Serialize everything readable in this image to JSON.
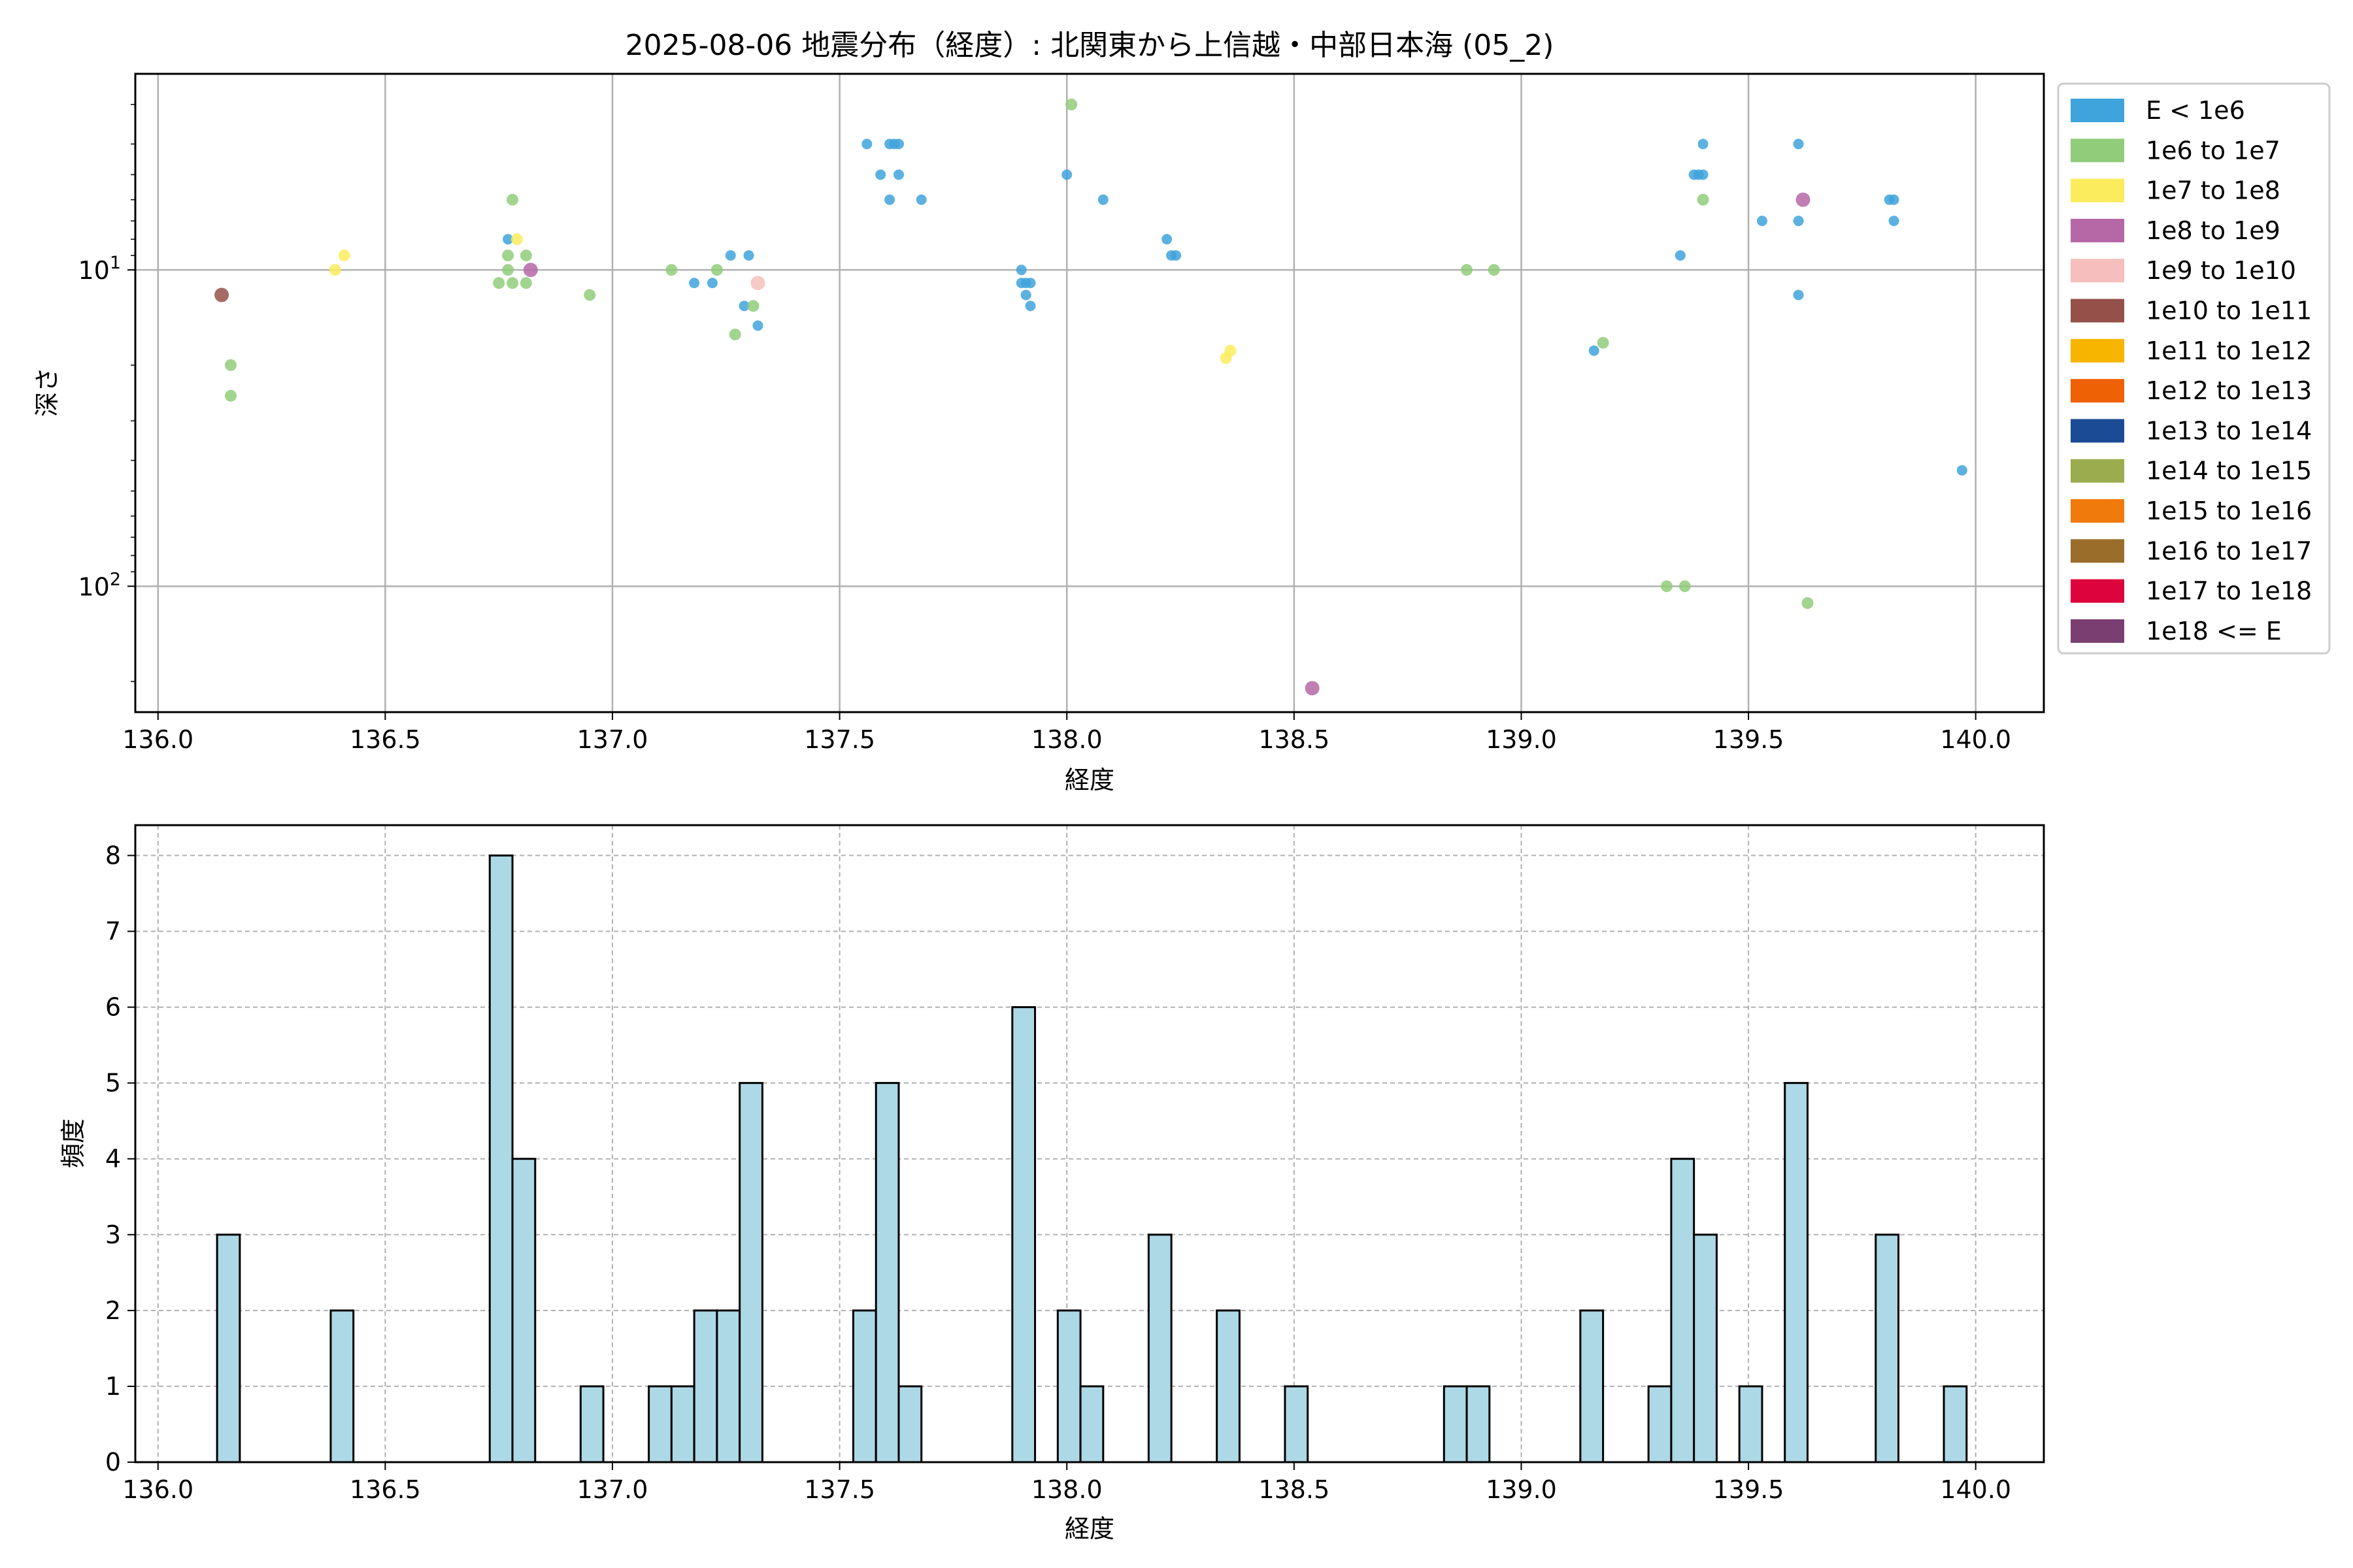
{
  "chart_data": [
    {
      "type": "scatter",
      "title": "2025-08-06 地震分布（経度）: 北関東から上信越・中部日本海 (05_2)",
      "xlabel": "経度",
      "ylabel": "深さ",
      "xlim": [
        135.95,
        140.15
      ],
      "ylim": [
        250,
        2.4
      ],
      "y_scale": "log",
      "y_inverted": true,
      "grid": true,
      "legend_position": "outside-right",
      "xticks": [
        "136.0",
        "136.5",
        "137.0",
        "137.5",
        "138.0",
        "138.5",
        "139.0",
        "139.5",
        "140.0"
      ],
      "yticks": [
        {
          "value": 10,
          "base": "10",
          "exp": "1"
        },
        {
          "value": 100,
          "base": "10",
          "exp": "2"
        }
      ],
      "legend": [
        {
          "label": "E < 1e6",
          "color": "#3fa3dc"
        },
        {
          "label": "1e6 to 1e7",
          "color": "#90cc7a"
        },
        {
          "label": "1e7 to 1e8",
          "color": "#fbec5d"
        },
        {
          "label": "1e8 to 1e9",
          "color": "#b567a6"
        },
        {
          "label": "1e9 to 1e10",
          "color": "#f6bfbd"
        },
        {
          "label": "1e10 to 1e11",
          "color": "#955149"
        },
        {
          "label": "1e11 to 1e12",
          "color": "#f7b500"
        },
        {
          "label": "1e12 to 1e13",
          "color": "#ee6104"
        },
        {
          "label": "1e13 to 1e14",
          "color": "#1b4b94"
        },
        {
          "label": "1e14 to 1e15",
          "color": "#9bac4e"
        },
        {
          "label": "1e15 to 1e16",
          "color": "#f17a0c"
        },
        {
          "label": "1e16 to 1e17",
          "color": "#9a6d2b"
        },
        {
          "label": "1e17 to 1e18",
          "color": "#dd043d"
        },
        {
          "label": "1e18 <= E",
          "color": "#7a3e71"
        }
      ],
      "points": [
        {
          "x": 136.14,
          "y": 12,
          "c": 5
        },
        {
          "x": 136.16,
          "y": 20,
          "c": 1
        },
        {
          "x": 136.16,
          "y": 25,
          "c": 1
        },
        {
          "x": 136.39,
          "y": 10,
          "c": 2
        },
        {
          "x": 136.41,
          "y": 9,
          "c": 2
        },
        {
          "x": 136.75,
          "y": 11,
          "c": 1
        },
        {
          "x": 136.77,
          "y": 8,
          "c": 0
        },
        {
          "x": 136.77,
          "y": 9,
          "c": 1
        },
        {
          "x": 136.77,
          "y": 10,
          "c": 1
        },
        {
          "x": 136.78,
          "y": 11,
          "c": 1
        },
        {
          "x": 136.78,
          "y": 6,
          "c": 1
        },
        {
          "x": 136.79,
          "y": 8,
          "c": 2
        },
        {
          "x": 136.81,
          "y": 9,
          "c": 1
        },
        {
          "x": 136.81,
          "y": 11,
          "c": 1
        },
        {
          "x": 136.82,
          "y": 10,
          "c": 3
        },
        {
          "x": 136.95,
          "y": 12,
          "c": 1
        },
        {
          "x": 137.13,
          "y": 10,
          "c": 1
        },
        {
          "x": 137.18,
          "y": 11,
          "c": 0
        },
        {
          "x": 137.22,
          "y": 11,
          "c": 0
        },
        {
          "x": 137.23,
          "y": 10,
          "c": 1
        },
        {
          "x": 137.26,
          "y": 9,
          "c": 0
        },
        {
          "x": 137.27,
          "y": 16,
          "c": 1
        },
        {
          "x": 137.29,
          "y": 13,
          "c": 0
        },
        {
          "x": 137.3,
          "y": 9,
          "c": 0
        },
        {
          "x": 137.31,
          "y": 13,
          "c": 1
        },
        {
          "x": 137.32,
          "y": 11,
          "c": 4
        },
        {
          "x": 137.32,
          "y": 15,
          "c": 0
        },
        {
          "x": 137.56,
          "y": 4,
          "c": 0
        },
        {
          "x": 137.59,
          "y": 5,
          "c": 0
        },
        {
          "x": 137.61,
          "y": 4,
          "c": 0
        },
        {
          "x": 137.61,
          "y": 6,
          "c": 0
        },
        {
          "x": 137.62,
          "y": 4,
          "c": 0
        },
        {
          "x": 137.63,
          "y": 5,
          "c": 0
        },
        {
          "x": 137.63,
          "y": 4,
          "c": 0
        },
        {
          "x": 137.68,
          "y": 6,
          "c": 0
        },
        {
          "x": 137.9,
          "y": 10,
          "c": 0
        },
        {
          "x": 137.9,
          "y": 11,
          "c": 0
        },
        {
          "x": 137.91,
          "y": 12,
          "c": 0
        },
        {
          "x": 137.91,
          "y": 11,
          "c": 0
        },
        {
          "x": 137.92,
          "y": 13,
          "c": 0
        },
        {
          "x": 137.92,
          "y": 11,
          "c": 0
        },
        {
          "x": 138.0,
          "y": 5,
          "c": 0
        },
        {
          "x": 138.01,
          "y": 3,
          "c": 1
        },
        {
          "x": 138.08,
          "y": 6,
          "c": 0
        },
        {
          "x": 138.22,
          "y": 8,
          "c": 0
        },
        {
          "x": 138.23,
          "y": 9,
          "c": 0
        },
        {
          "x": 138.24,
          "y": 9,
          "c": 0
        },
        {
          "x": 138.35,
          "y": 19,
          "c": 2
        },
        {
          "x": 138.36,
          "y": 18,
          "c": 2
        },
        {
          "x": 138.54,
          "y": 210,
          "c": 3
        },
        {
          "x": 138.88,
          "y": 10,
          "c": 1
        },
        {
          "x": 138.94,
          "y": 10,
          "c": 1
        },
        {
          "x": 139.16,
          "y": 18,
          "c": 0
        },
        {
          "x": 139.18,
          "y": 17,
          "c": 1
        },
        {
          "x": 139.32,
          "y": 100,
          "c": 1
        },
        {
          "x": 139.35,
          "y": 9,
          "c": 0
        },
        {
          "x": 139.36,
          "y": 100,
          "c": 1
        },
        {
          "x": 139.38,
          "y": 5,
          "c": 0
        },
        {
          "x": 139.39,
          "y": 5,
          "c": 0
        },
        {
          "x": 139.4,
          "y": 4,
          "c": 0
        },
        {
          "x": 139.4,
          "y": 5,
          "c": 0
        },
        {
          "x": 139.4,
          "y": 6,
          "c": 1
        },
        {
          "x": 139.53,
          "y": 7,
          "c": 0
        },
        {
          "x": 139.61,
          "y": 4,
          "c": 0
        },
        {
          "x": 139.61,
          "y": 7,
          "c": 0
        },
        {
          "x": 139.61,
          "y": 12,
          "c": 0
        },
        {
          "x": 139.62,
          "y": 6,
          "c": 3
        },
        {
          "x": 139.63,
          "y": 113,
          "c": 1
        },
        {
          "x": 139.81,
          "y": 6,
          "c": 0
        },
        {
          "x": 139.82,
          "y": 6,
          "c": 0
        },
        {
          "x": 139.82,
          "y": 7,
          "c": 0
        },
        {
          "x": 139.97,
          "y": 43,
          "c": 0
        }
      ]
    },
    {
      "type": "bar",
      "title": "",
      "xlabel": "経度",
      "ylabel": "頻度",
      "xlim": [
        135.95,
        140.15
      ],
      "ylim": [
        0,
        8.4
      ],
      "grid": true,
      "grid_style": "dashed",
      "bar_color": "#add8e6",
      "bin_width": 0.05,
      "xticks": [
        "136.0",
        "136.5",
        "137.0",
        "137.5",
        "138.0",
        "138.5",
        "139.0",
        "139.5",
        "140.0"
      ],
      "yticks": [
        "0",
        "1",
        "2",
        "3",
        "4",
        "5",
        "6",
        "7",
        "8"
      ],
      "bins": [
        {
          "x0": 136.13,
          "count": 3
        },
        {
          "x0": 136.38,
          "count": 2
        },
        {
          "x0": 136.73,
          "count": 8
        },
        {
          "x0": 136.78,
          "count": 4
        },
        {
          "x0": 136.93,
          "count": 1
        },
        {
          "x0": 137.08,
          "count": 1
        },
        {
          "x0": 137.13,
          "count": 1
        },
        {
          "x0": 137.18,
          "count": 2
        },
        {
          "x0": 137.23,
          "count": 2
        },
        {
          "x0": 137.28,
          "count": 5
        },
        {
          "x0": 137.53,
          "count": 2
        },
        {
          "x0": 137.58,
          "count": 5
        },
        {
          "x0": 137.63,
          "count": 1
        },
        {
          "x0": 137.88,
          "count": 6
        },
        {
          "x0": 137.98,
          "count": 2
        },
        {
          "x0": 138.03,
          "count": 1
        },
        {
          "x0": 138.18,
          "count": 3
        },
        {
          "x0": 138.33,
          "count": 2
        },
        {
          "x0": 138.48,
          "count": 1
        },
        {
          "x0": 138.83,
          "count": 1
        },
        {
          "x0": 138.88,
          "count": 1
        },
        {
          "x0": 139.13,
          "count": 2
        },
        {
          "x0": 139.28,
          "count": 1
        },
        {
          "x0": 139.33,
          "count": 4
        },
        {
          "x0": 139.38,
          "count": 3
        },
        {
          "x0": 139.48,
          "count": 1
        },
        {
          "x0": 139.58,
          "count": 5
        },
        {
          "x0": 139.78,
          "count": 3
        },
        {
          "x0": 139.93,
          "count": 1
        }
      ]
    }
  ]
}
